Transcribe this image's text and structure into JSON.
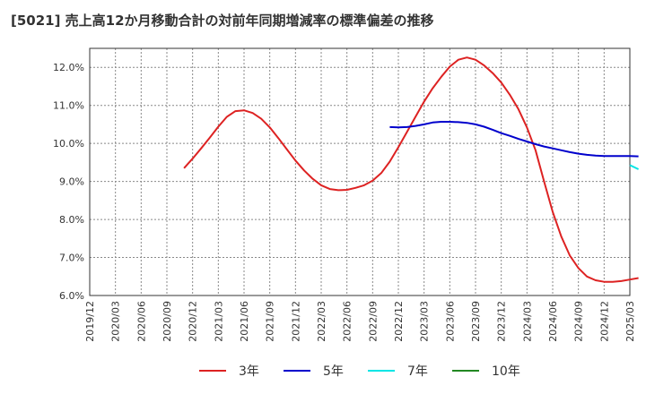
{
  "title": "[5021]  売上高12か月移動合計の対前年同期増減率の標準偏差の推移",
  "chart_data": {
    "type": "line",
    "title": "[5021]  売上高12か月移動合計の対前年同期増減率の標準偏差の推移",
    "xlabel": "",
    "ylabel": "",
    "x_ticks": [
      "2019/12",
      "2020/03",
      "2020/06",
      "2020/09",
      "2020/12",
      "2021/03",
      "2021/06",
      "2021/09",
      "2021/12",
      "2022/03",
      "2022/06",
      "2022/09",
      "2022/12",
      "2023/03",
      "2023/06",
      "2023/09",
      "2023/12",
      "2024/03",
      "2024/06",
      "2024/09",
      "2024/12",
      "2025/03"
    ],
    "y_ticks": [
      "6.0%",
      "7.0%",
      "8.0%",
      "9.0%",
      "10.0%",
      "11.0%",
      "12.0%"
    ],
    "ylim": [
      6.0,
      12.5
    ],
    "grid": true,
    "legend_position": "bottom",
    "series": [
      {
        "name": "3年",
        "color": "#dd2222",
        "points": [
          [
            "2020/11",
            9.35
          ],
          [
            "2020/12",
            9.6
          ],
          [
            "2021/01",
            9.87
          ],
          [
            "2021/02",
            10.15
          ],
          [
            "2021/03",
            10.44
          ],
          [
            "2021/04",
            10.7
          ],
          [
            "2021/05",
            10.85
          ],
          [
            "2021/06",
            10.87
          ],
          [
            "2021/07",
            10.8
          ],
          [
            "2021/08",
            10.65
          ],
          [
            "2021/09",
            10.42
          ],
          [
            "2021/10",
            10.14
          ],
          [
            "2021/11",
            9.84
          ],
          [
            "2021/12",
            9.55
          ],
          [
            "2022/01",
            9.29
          ],
          [
            "2022/02",
            9.07
          ],
          [
            "2022/03",
            8.9
          ],
          [
            "2022/04",
            8.8
          ],
          [
            "2022/05",
            8.77
          ],
          [
            "2022/06",
            8.78
          ],
          [
            "2022/07",
            8.83
          ],
          [
            "2022/08",
            8.9
          ],
          [
            "2022/09",
            9.02
          ],
          [
            "2022/10",
            9.22
          ],
          [
            "2022/11",
            9.52
          ],
          [
            "2022/12",
            9.9
          ],
          [
            "2023/01",
            10.3
          ],
          [
            "2023/02",
            10.7
          ],
          [
            "2023/03",
            11.1
          ],
          [
            "2023/04",
            11.45
          ],
          [
            "2023/05",
            11.75
          ],
          [
            "2023/06",
            12.02
          ],
          [
            "2023/07",
            12.2
          ],
          [
            "2023/08",
            12.26
          ],
          [
            "2023/09",
            12.2
          ],
          [
            "2023/10",
            12.05
          ],
          [
            "2023/11",
            11.85
          ],
          [
            "2023/12",
            11.6
          ],
          [
            "2024/01",
            11.28
          ],
          [
            "2024/02",
            10.9
          ],
          [
            "2024/03",
            10.42
          ],
          [
            "2024/04",
            9.82
          ],
          [
            "2024/05",
            9.0
          ],
          [
            "2024/06",
            8.2
          ],
          [
            "2024/07",
            7.55
          ],
          [
            "2024/08",
            7.05
          ],
          [
            "2024/09",
            6.72
          ],
          [
            "2024/10",
            6.5
          ],
          [
            "2024/11",
            6.4
          ],
          [
            "2024/12",
            6.36
          ],
          [
            "2025/01",
            6.36
          ],
          [
            "2025/02",
            6.38
          ],
          [
            "2025/03",
            6.42
          ],
          [
            "2025/04",
            6.46
          ]
        ]
      },
      {
        "name": "5年",
        "color": "#0000cc",
        "points": [
          [
            "2022/11",
            10.43
          ],
          [
            "2022/12",
            10.42
          ],
          [
            "2023/01",
            10.43
          ],
          [
            "2023/02",
            10.46
          ],
          [
            "2023/03",
            10.5
          ],
          [
            "2023/04",
            10.55
          ],
          [
            "2023/05",
            10.57
          ],
          [
            "2023/06",
            10.57
          ],
          [
            "2023/07",
            10.56
          ],
          [
            "2023/08",
            10.54
          ],
          [
            "2023/09",
            10.5
          ],
          [
            "2023/10",
            10.44
          ],
          [
            "2023/11",
            10.36
          ],
          [
            "2023/12",
            10.27
          ],
          [
            "2024/01",
            10.2
          ],
          [
            "2024/02",
            10.12
          ],
          [
            "2024/03",
            10.05
          ],
          [
            "2024/04",
            9.98
          ],
          [
            "2024/05",
            9.92
          ],
          [
            "2024/06",
            9.87
          ],
          [
            "2024/07",
            9.82
          ],
          [
            "2024/08",
            9.77
          ],
          [
            "2024/09",
            9.73
          ],
          [
            "2024/10",
            9.7
          ],
          [
            "2024/11",
            9.68
          ],
          [
            "2024/12",
            9.67
          ],
          [
            "2025/01",
            9.67
          ],
          [
            "2025/02",
            9.67
          ],
          [
            "2025/03",
            9.67
          ],
          [
            "2025/04",
            9.66
          ]
        ]
      },
      {
        "name": "7年",
        "color": "#00e5e5",
        "points": [
          [
            "2025/03",
            9.43
          ],
          [
            "2025/04",
            9.32
          ]
        ]
      },
      {
        "name": "10年",
        "color": "#228822",
        "points": []
      }
    ]
  }
}
